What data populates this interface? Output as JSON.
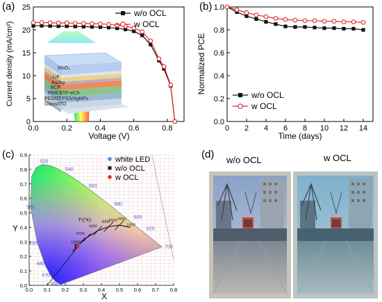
{
  "panel_labels": {
    "a": "(a)",
    "b": "(b)",
    "c": "(c)",
    "d": "(d)"
  },
  "colors": {
    "wo_ocl": "#111111",
    "w_ocl": "#e0282a",
    "white_led": "#4a90d9"
  },
  "chart_data": [
    {
      "id": "a",
      "type": "line",
      "xlabel": "Voltage (V)",
      "ylabel": "Current density (mA/cm²)",
      "xlim": [
        0.0,
        0.9
      ],
      "ylim": [
        0,
        25
      ],
      "xticks": [
        "0.0",
        "0.2",
        "0.4",
        "0.6",
        "0.8"
      ],
      "yticks": [
        "0",
        "5",
        "10",
        "15",
        "20",
        "25"
      ],
      "legend_position": "top-right",
      "series": [
        {
          "name": "w/o OCL",
          "marker": "square",
          "color": "#111111",
          "x": [
            0.0,
            0.05,
            0.1,
            0.15,
            0.2,
            0.25,
            0.3,
            0.35,
            0.4,
            0.45,
            0.5,
            0.55,
            0.6,
            0.65,
            0.7,
            0.75,
            0.78,
            0.82,
            0.845
          ],
          "y": [
            20.9,
            20.9,
            20.85,
            20.8,
            20.8,
            20.75,
            20.7,
            20.65,
            20.6,
            20.5,
            20.35,
            20.1,
            19.7,
            18.8,
            16.8,
            13.3,
            11.5,
            7.8,
            0
          ]
        },
        {
          "name": "w OCL",
          "marker": "circle",
          "color": "#e0282a",
          "x": [
            0.0,
            0.05,
            0.1,
            0.15,
            0.2,
            0.25,
            0.3,
            0.35,
            0.4,
            0.45,
            0.5,
            0.55,
            0.6,
            0.65,
            0.7,
            0.75,
            0.78,
            0.82,
            0.845
          ],
          "y": [
            21.6,
            21.6,
            21.55,
            21.5,
            21.5,
            21.45,
            21.4,
            21.35,
            21.3,
            21.2,
            21.0,
            20.8,
            20.4,
            19.6,
            17.6,
            13.7,
            12.0,
            8.0,
            0
          ]
        }
      ],
      "inset_layers": [
        "MoO₃",
        "LiF",
        "Au/Ag",
        "BCP",
        "PM6:BTP-eC9",
        "PEDOT:PSS/AgNPs",
        "Glass/ITO"
      ]
    },
    {
      "id": "b",
      "type": "line",
      "xlabel": "Time (days)",
      "ylabel": "Normalized PCE",
      "xlim": [
        0,
        15
      ],
      "ylim": [
        0.0,
        1.0
      ],
      "xticks": [
        "0",
        "2",
        "4",
        "6",
        "8",
        "10",
        "12",
        "14"
      ],
      "yticks": [
        "0.0",
        "0.2",
        "0.4",
        "0.6",
        "0.8",
        "1.0"
      ],
      "legend_position": "bottom-left",
      "series": [
        {
          "name": "w/o OCL",
          "marker": "square",
          "color": "#111111",
          "x": [
            0,
            1,
            2,
            3,
            4,
            5,
            6,
            7,
            8,
            9,
            10,
            11,
            12,
            13,
            14
          ],
          "y": [
            1.0,
            0.955,
            0.92,
            0.895,
            0.87,
            0.85,
            0.83,
            0.825,
            0.825,
            0.82,
            0.815,
            0.815,
            0.81,
            0.81,
            0.8
          ]
        },
        {
          "name": "w OCL",
          "marker": "circle",
          "color": "#e0282a",
          "x": [
            0,
            1,
            2,
            3,
            4,
            5,
            6,
            7,
            8,
            9,
            10,
            11,
            12,
            13,
            14
          ],
          "y": [
            1.0,
            0.975,
            0.95,
            0.93,
            0.915,
            0.9,
            0.89,
            0.885,
            0.88,
            0.88,
            0.875,
            0.875,
            0.87,
            0.87,
            0.865
          ]
        }
      ]
    },
    {
      "id": "c",
      "type": "scatter",
      "xlabel": "X",
      "ylabel": "Y",
      "xlim": [
        0.0,
        0.8
      ],
      "ylim": [
        0.0,
        0.9
      ],
      "xticks": [
        "0.0",
        "0.1",
        "0.2",
        "0.3",
        "0.4",
        "0.5",
        "0.6",
        "0.7",
        "0.8"
      ],
      "yticks": [
        "0.0",
        "0.1",
        "0.2",
        "0.3",
        "0.4",
        "0.5",
        "0.6",
        "0.7",
        "0.8",
        "0.9"
      ],
      "wavelength_labels": [
        "460",
        "470",
        "480",
        "490",
        "500",
        "520",
        "540",
        "560",
        "580",
        "600",
        "620",
        "700"
      ],
      "planckian_label": "Tᶜ(°K)",
      "cct_labels": [
        "10000",
        "6000",
        "4000",
        "3000",
        "2500",
        "2000",
        "1500"
      ],
      "legend_position": "top-right",
      "series": [
        {
          "name": "white LED",
          "color": "#4a90d9",
          "x": [
            0.275
          ],
          "y": [
            0.275
          ]
        },
        {
          "name": "w/o OCL",
          "color": "#111111",
          "x": [
            0.262
          ],
          "y": [
            0.272
          ]
        },
        {
          "name": "w OCL",
          "color": "#e0282a",
          "x": [
            0.268
          ],
          "y": [
            0.27
          ]
        }
      ]
    }
  ],
  "photos": {
    "left_label": "w/o OCL",
    "right_label": "w OCL"
  }
}
